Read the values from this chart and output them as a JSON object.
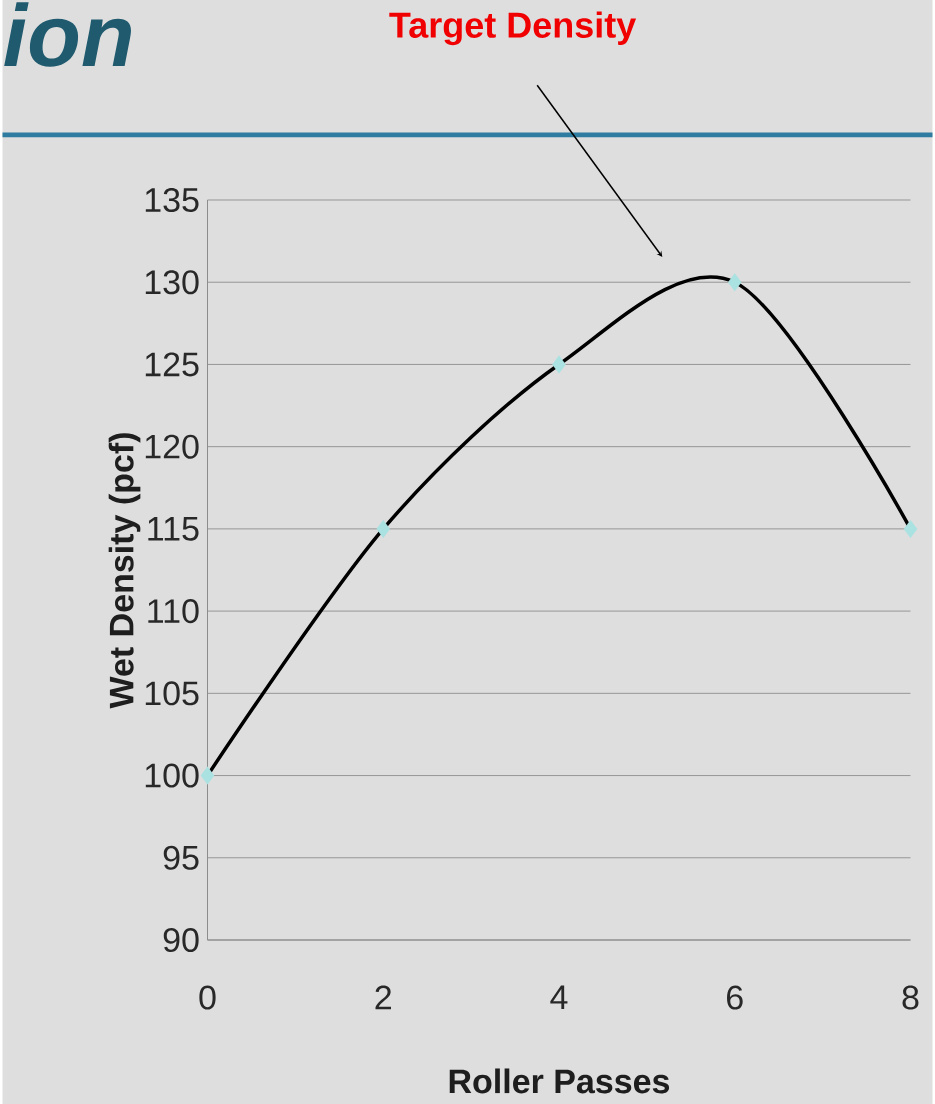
{
  "chart_data": {
    "type": "line",
    "xlabel": "Roller Passes",
    "ylabel": "Wet Density (pcf)",
    "x": [
      0,
      2,
      4,
      6,
      8
    ],
    "series": [
      {
        "color": "#000000",
        "values": [
          100,
          115,
          125,
          130,
          115
        ]
      }
    ],
    "xlim": [
      0,
      8
    ],
    "xticks": [
      0,
      2,
      4,
      6,
      8
    ],
    "ylim": [
      90,
      135
    ],
    "yticks": [
      90,
      95,
      100,
      105,
      110,
      115,
      120,
      125,
      130,
      135
    ],
    "grid": "y",
    "marker": "diamond",
    "line_style": "solid",
    "annotations": [
      "ion",
      "Target Density"
    ]
  }
}
